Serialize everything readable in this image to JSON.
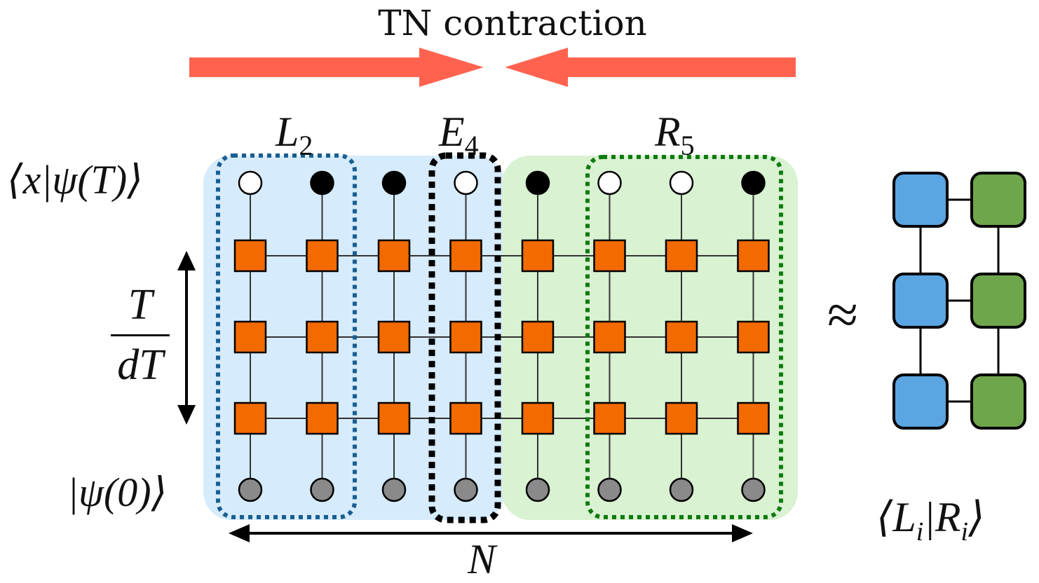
{
  "title": "TN contraction",
  "labels": {
    "L_main": "L",
    "L_sub": "2",
    "E_main": "E",
    "E_sub": "4",
    "R_main": "R",
    "R_sub": "5",
    "top_state": "⟨x|ψ(T)⟩",
    "bottom_state": "|ψ(0)⟩",
    "time_num": "T",
    "time_den": "dT",
    "width_label": "N",
    "approx": "≈",
    "overlap": "⟨L",
    "overlap_sub": "i",
    "overlap_mid": "|R",
    "overlap_sub2": "i",
    "overlap_end": "⟩"
  },
  "colors": {
    "arrow": "#ff6350",
    "left_region": "#d6ebfb",
    "right_region": "#d9f2d2",
    "gate": "#f26a00",
    "blue_block": "#5aa5e2",
    "green_block": "#6fa64c",
    "L_border": "#1a5e91",
    "R_border": "#0f7a0f",
    "measured_white": "#ffffff",
    "measured_black": "#000000",
    "initial": "#8a8a8a"
  },
  "grid": {
    "columns": 8,
    "gate_rows": 3,
    "top_outcomes": [
      "white",
      "black",
      "black",
      "white",
      "black",
      "white",
      "white",
      "black"
    ]
  },
  "mps_rows": 3
}
